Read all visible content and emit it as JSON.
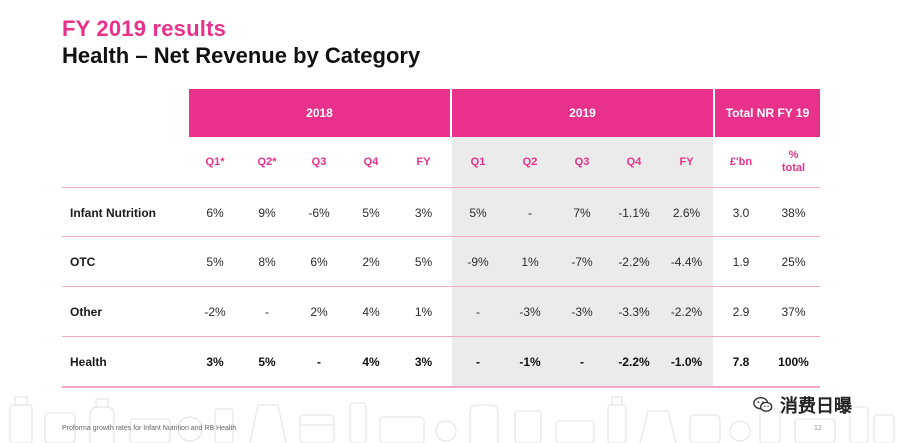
{
  "header": {
    "kicker": "FY 2019 results",
    "title": "Health – Net Revenue by Category"
  },
  "table": {
    "groups": [
      {
        "label": "2018"
      },
      {
        "label": "2019"
      },
      {
        "label": "Total NR FY 19"
      }
    ],
    "columns": [
      "Q1*",
      "Q2*",
      "Q3",
      "Q4",
      "FY",
      "Q1",
      "Q2",
      "Q3",
      "Q4",
      "FY",
      "£'bn",
      "% total"
    ],
    "rows": [
      {
        "label": "Infant Nutrition",
        "values": [
          "6%",
          "9%",
          "-6%",
          "5%",
          "3%",
          "5%",
          "-",
          "7%",
          "-1.1%",
          "2.6%",
          "3.0",
          "38%"
        ],
        "bold": false
      },
      {
        "label": "OTC",
        "values": [
          "5%",
          "8%",
          "6%",
          "2%",
          "5%",
          "-9%",
          "1%",
          "-7%",
          "-2.2%",
          "-4.4%",
          "1.9",
          "25%"
        ],
        "bold": false
      },
      {
        "label": "Other",
        "values": [
          "-2%",
          "-",
          "2%",
          "4%",
          "1%",
          "-",
          "-3%",
          "-3%",
          "-3.3%",
          "-2.2%",
          "2.9",
          "37%"
        ],
        "bold": false
      },
      {
        "label": "Health",
        "values": [
          "3%",
          "5%",
          "-",
          "4%",
          "3%",
          "-",
          "-1%",
          "-",
          "-2.2%",
          "-1.0%",
          "7.8",
          "100%"
        ],
        "bold": true
      }
    ]
  },
  "footer": {
    "note": "Proforma growth rates for Infant Nutrition and RB Health",
    "page": "12"
  },
  "watermark": {
    "text": "消费日曝",
    "icon": "wechat-icon"
  },
  "colors": {
    "accent": "#e8318a",
    "accent_light": "#f2a8cb",
    "shade": "#ebebeb"
  }
}
